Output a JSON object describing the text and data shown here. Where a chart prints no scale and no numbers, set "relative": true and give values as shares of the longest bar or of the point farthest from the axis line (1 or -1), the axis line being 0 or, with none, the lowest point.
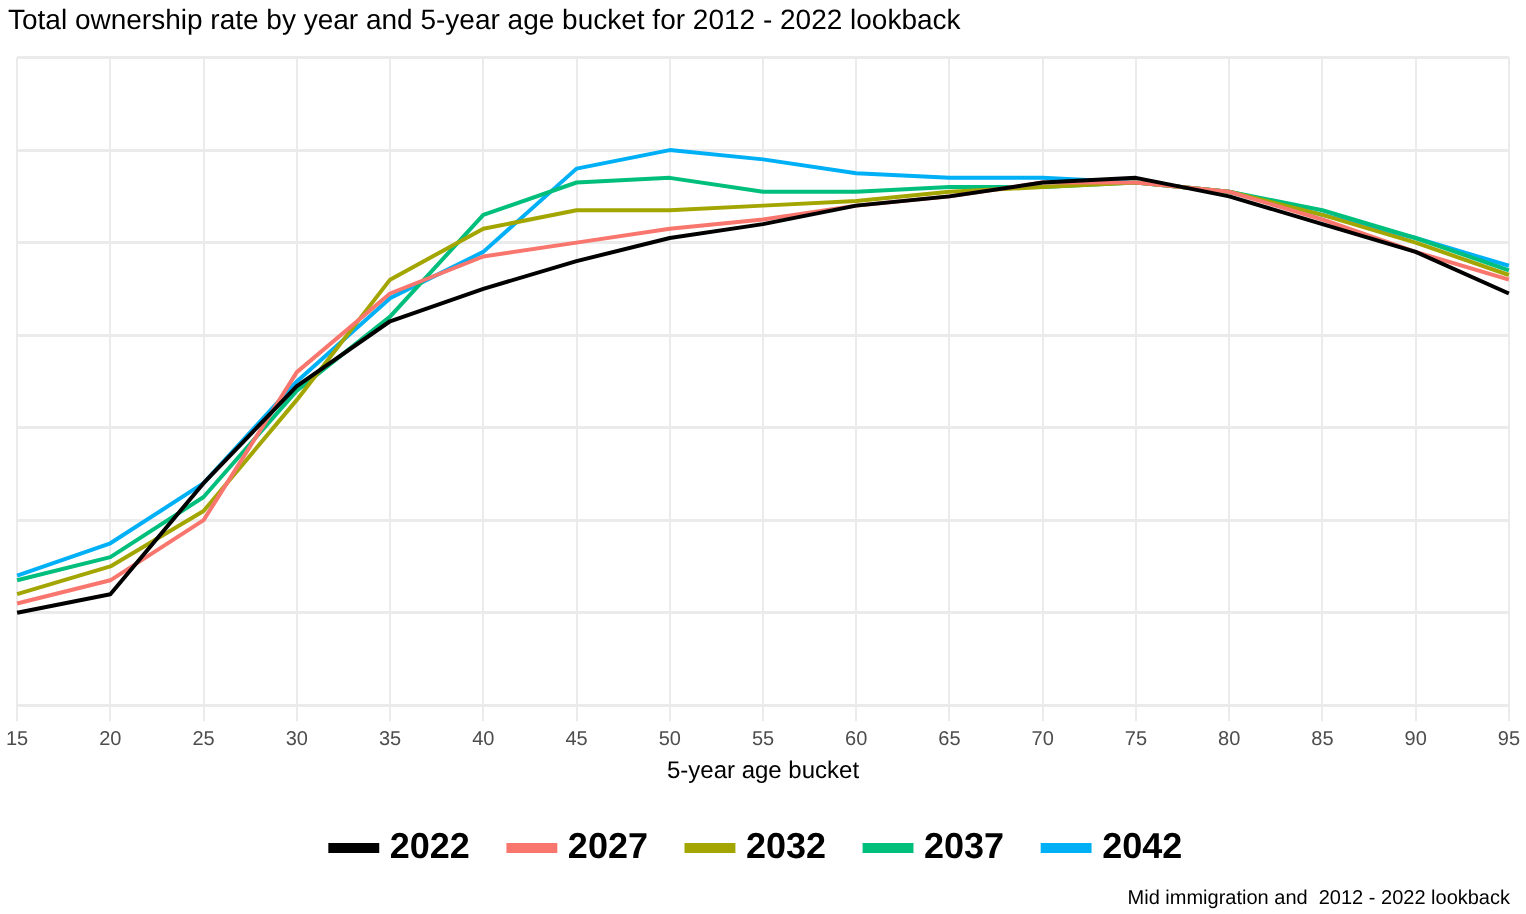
{
  "chart_data": {
    "type": "line",
    "title": "Total ownership rate by year and 5-year age bucket for 2012 - 2022 lookback",
    "xlabel": "5-year age bucket",
    "relative": true,
    "grid": true,
    "legend": "bottom",
    "annotations": [
      "Mid immigration and  2012 - 2022 lookback"
    ],
    "categories": [
      "15",
      "20",
      "25",
      "30",
      "35",
      "40",
      "45",
      "50",
      "55",
      "60",
      "65",
      "70",
      "75",
      "80",
      "85",
      "90",
      "95"
    ],
    "series": [
      {
        "name": "2022",
        "color": "#000000",
        "values": [
          0,
          0.04,
          0.28,
          0.49,
          0.63,
          0.7,
          0.76,
          0.81,
          0.84,
          0.88,
          0.9,
          0.93,
          0.94,
          0.9,
          0.84,
          0.78,
          0.69
        ]
      },
      {
        "name": "2027",
        "color": "#f8766d",
        "values": [
          0.02,
          0.07,
          0.2,
          0.52,
          0.69,
          0.77,
          0.8,
          0.83,
          0.85,
          0.88,
          0.9,
          0.93,
          0.93,
          0.91,
          0.85,
          0.78,
          0.72
        ]
      },
      {
        "name": "2032",
        "color": "#a3a500",
        "values": [
          0.04,
          0.1,
          0.22,
          0.46,
          0.72,
          0.83,
          0.87,
          0.87,
          0.88,
          0.89,
          0.91,
          0.92,
          0.93,
          0.91,
          0.86,
          0.8,
          0.73
        ]
      },
      {
        "name": "2037",
        "color": "#00bf7d",
        "values": [
          0.07,
          0.12,
          0.25,
          0.48,
          0.64,
          0.86,
          0.93,
          0.94,
          0.91,
          0.91,
          0.92,
          0.92,
          0.93,
          0.91,
          0.87,
          0.81,
          0.74
        ]
      },
      {
        "name": "2042",
        "color": "#00b0f6",
        "values": [
          0.08,
          0.15,
          0.28,
          0.5,
          0.68,
          0.78,
          0.96,
          1,
          0.98,
          0.95,
          0.94,
          0.94,
          0.93,
          0.91,
          0.86,
          0.81,
          0.75
        ]
      }
    ]
  }
}
